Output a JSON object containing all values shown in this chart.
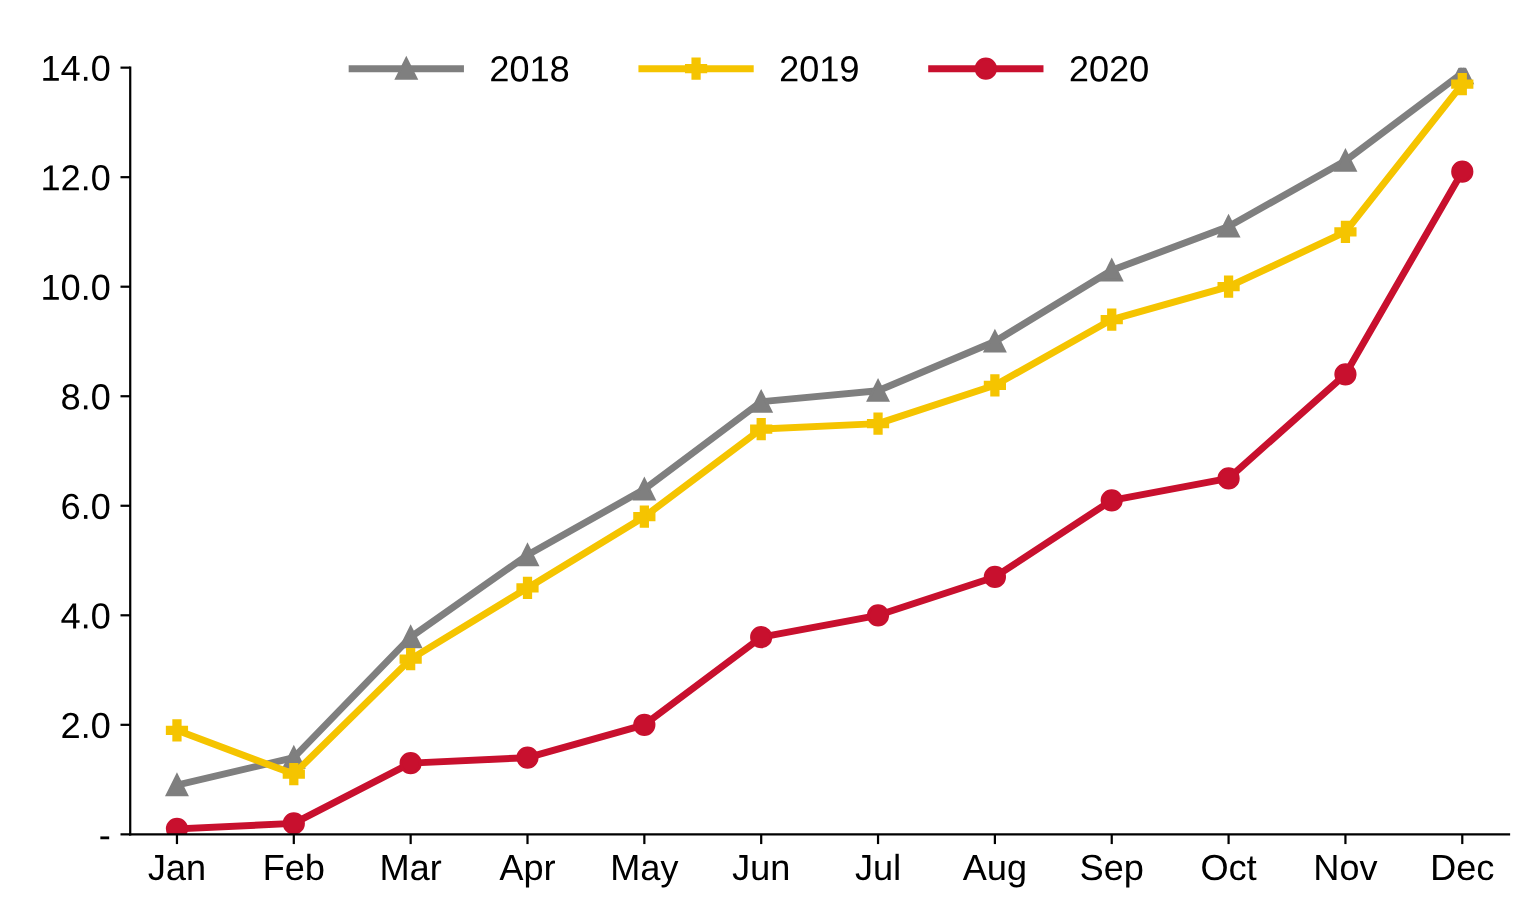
{
  "chart_data": {
    "type": "line",
    "categories": [
      "Jan",
      "Feb",
      "Mar",
      "Apr",
      "May",
      "Jun",
      "Jul",
      "Aug",
      "Sep",
      "Oct",
      "Nov",
      "Dec"
    ],
    "series": [
      {
        "name": "2018",
        "color": "#7f7f7f",
        "marker": "triangle",
        "values": [
          0.9,
          1.4,
          3.6,
          5.1,
          6.3,
          7.9,
          8.1,
          9.0,
          10.3,
          11.1,
          12.3,
          13.9
        ]
      },
      {
        "name": "2019",
        "color": "#f5c400",
        "marker": "cross",
        "values": [
          1.9,
          1.1,
          3.2,
          4.5,
          5.8,
          7.4,
          7.5,
          8.2,
          9.4,
          10.0,
          11.0,
          13.7
        ]
      },
      {
        "name": "2020",
        "color": "#c8102e",
        "marker": "circle",
        "values": [
          0.1,
          0.2,
          1.3,
          1.4,
          2.0,
          3.6,
          4.0,
          4.7,
          6.1,
          6.5,
          8.4,
          12.1
        ]
      }
    ],
    "ylim": [
      0,
      14
    ],
    "yticks": [
      {
        "value": 0,
        "label": "-"
      },
      {
        "value": 2,
        "label": "2.0"
      },
      {
        "value": 4,
        "label": "4.0"
      },
      {
        "value": 6,
        "label": "6.0"
      },
      {
        "value": 8,
        "label": "8.0"
      },
      {
        "value": 10,
        "label": "10.0"
      },
      {
        "value": 12,
        "label": "12.0"
      },
      {
        "value": 14,
        "label": "14.0"
      }
    ],
    "grid": false,
    "legend": "top",
    "line_style": "solid"
  }
}
